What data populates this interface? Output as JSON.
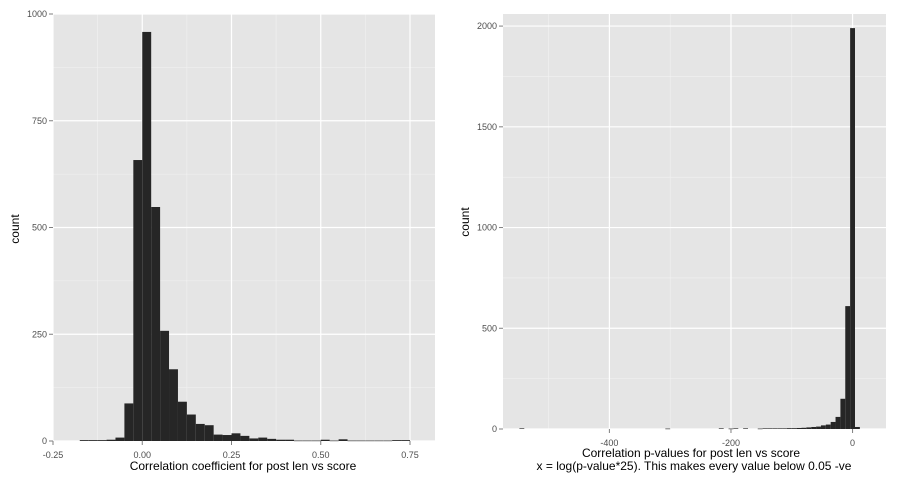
{
  "chart_data": [
    {
      "type": "bar",
      "xlabel": "Correlation coefficient for post len vs score",
      "ylabel": "count",
      "xlim": [
        -0.25,
        0.82
      ],
      "ylim": [
        0,
        1000
      ],
      "xticks": [
        "-0.25",
        "0.00",
        "0.25",
        "0.50",
        "0.75"
      ],
      "xtick_values": [
        -0.25,
        0,
        0.25,
        0.5,
        0.75
      ],
      "yticks": [
        "0",
        "250",
        "500",
        "750",
        "1000"
      ],
      "ytick_values": [
        0,
        250,
        500,
        750,
        1000
      ],
      "bin_width": 0.025,
      "bin_starts": [
        -0.175,
        -0.15,
        -0.125,
        -0.1,
        -0.075,
        -0.05,
        -0.025,
        0.0,
        0.025,
        0.05,
        0.075,
        0.1,
        0.125,
        0.15,
        0.175,
        0.2,
        0.225,
        0.25,
        0.275,
        0.3,
        0.325,
        0.35,
        0.375,
        0.4,
        0.425,
        0.45,
        0.475,
        0.5,
        0.525,
        0.55,
        0.575,
        0.6,
        0.625,
        0.65,
        0.675,
        0.7,
        0.725
      ],
      "values": [
        2,
        2,
        2,
        3,
        8,
        88,
        658,
        958,
        548,
        258,
        168,
        92,
        62,
        40,
        37,
        15,
        14,
        18,
        12,
        6,
        8,
        5,
        3,
        3,
        1,
        1,
        1,
        3,
        1,
        4,
        1,
        1,
        1,
        1,
        1,
        2,
        2
      ],
      "grid": true,
      "background": "#e5e5e5",
      "bar_color": "#262626"
    },
    {
      "type": "bar",
      "xlabel": "Correlation p-values for post len  vs score",
      "xlabel2": "x = log(p-value*25). This makes every value below 0.05 -ve",
      "ylabel": "count",
      "xlim": [
        -575,
        55
      ],
      "ylim": [
        0,
        2060
      ],
      "xticks": [
        "-400",
        "-200",
        "0"
      ],
      "xtick_values": [
        -400,
        -200,
        0
      ],
      "yticks": [
        "0",
        "500",
        "1000",
        "1500",
        "2000"
      ],
      "ytick_values": [
        0,
        500,
        1000,
        1500,
        2000
      ],
      "bin_width": 8,
      "bin_starts": [
        -548,
        -308,
        -220,
        -204,
        -196,
        -180,
        -156,
        -148,
        -140,
        -132,
        -124,
        -116,
        -108,
        -100,
        -92,
        -84,
        -76,
        -68,
        -60,
        -52,
        -44,
        -36,
        -28,
        -20,
        -12,
        -4,
        4
      ],
      "values": [
        3,
        2,
        3,
        2,
        3,
        3,
        2,
        3,
        3,
        3,
        3,
        3,
        4,
        4,
        5,
        6,
        8,
        10,
        12,
        18,
        22,
        35,
        60,
        150,
        610,
        1990,
        10
      ],
      "grid": true,
      "background": "#e5e5e5",
      "bar_color": "#262626"
    }
  ]
}
